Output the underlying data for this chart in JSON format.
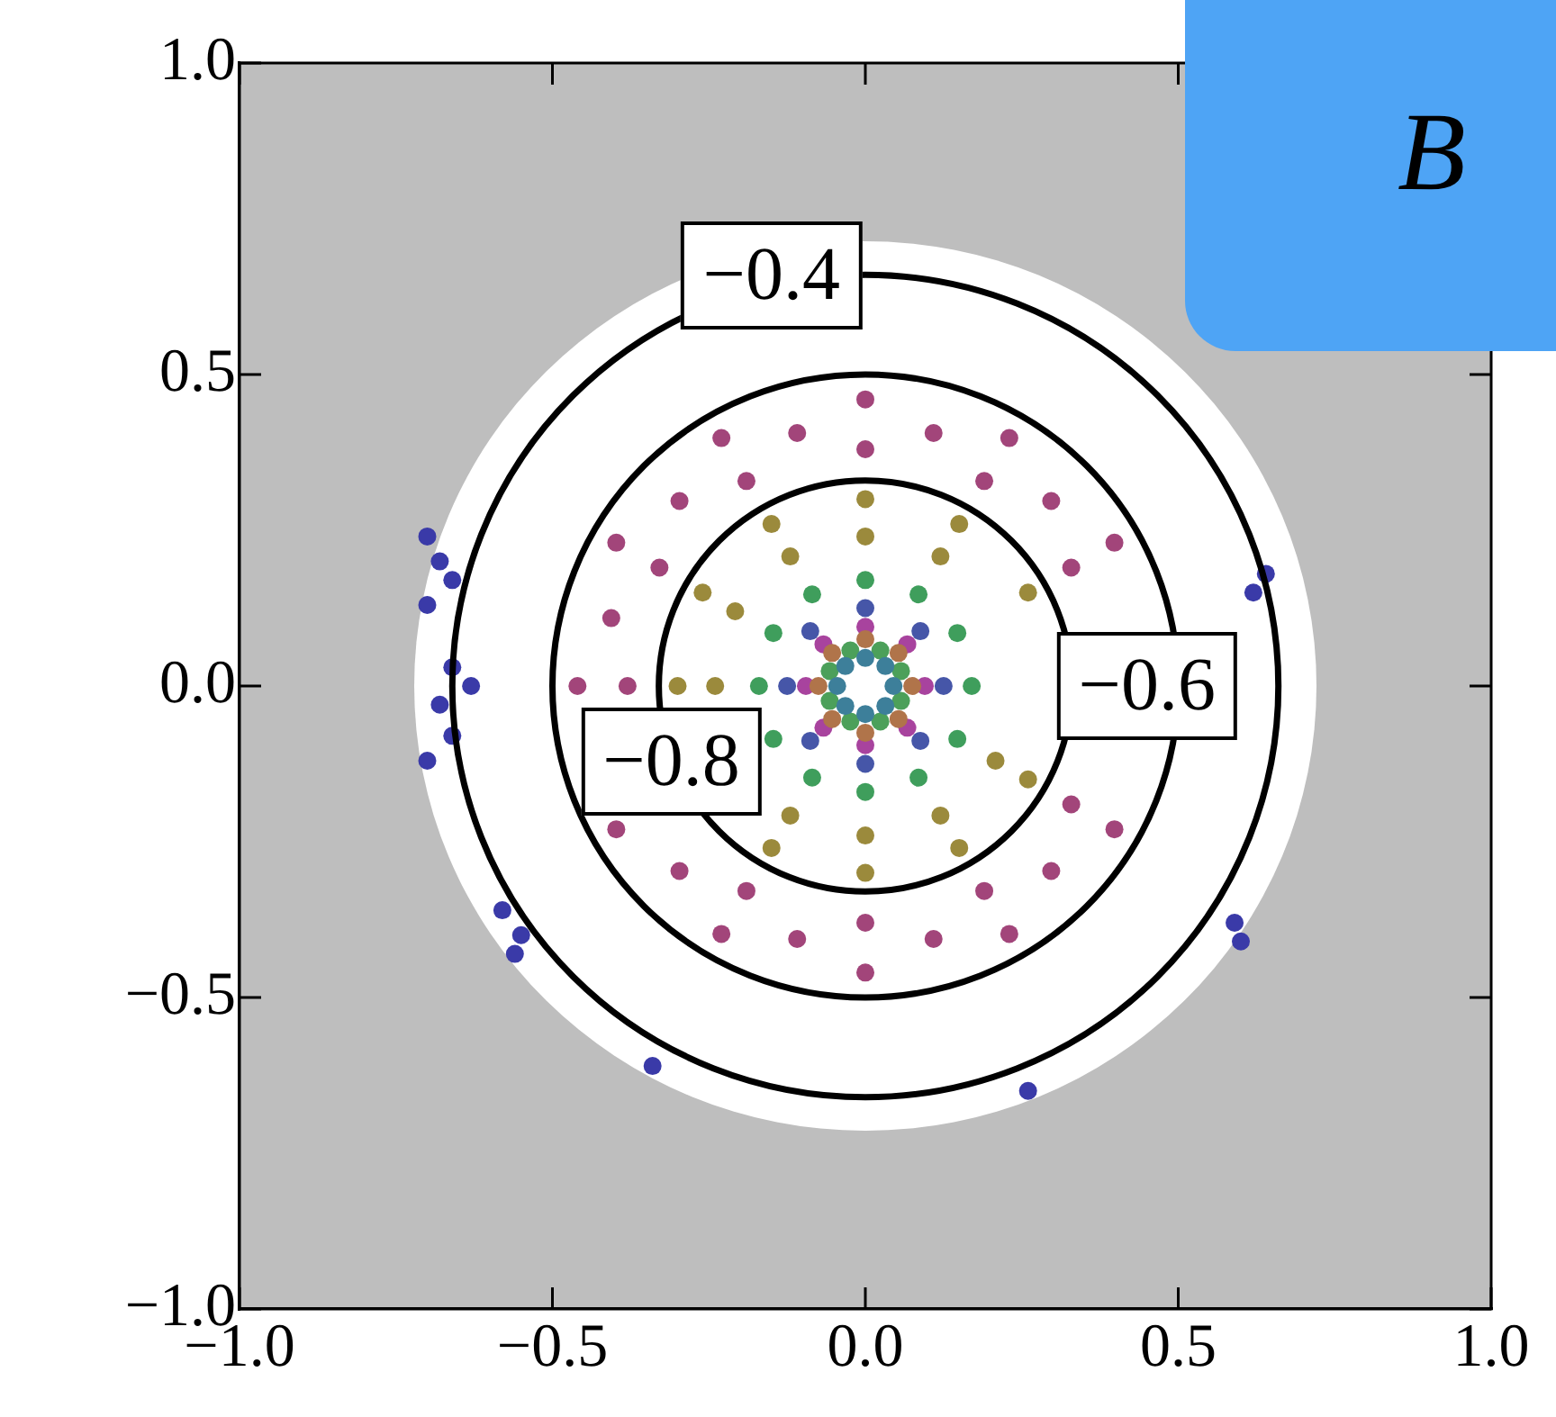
{
  "chart_data": {
    "type": "scatter",
    "xlim": [
      -1,
      1
    ],
    "ylim": [
      -1,
      1
    ],
    "xticks": [
      {
        "value": -1,
        "label": "−1.0"
      },
      {
        "value": -0.5,
        "label": "−0.5"
      },
      {
        "value": 0,
        "label": "0.0"
      },
      {
        "value": 0.5,
        "label": "0.5"
      },
      {
        "value": 1,
        "label": "1.0"
      }
    ],
    "yticks": [
      {
        "value": -1,
        "label": "−1.0"
      },
      {
        "value": -0.5,
        "label": "−0.5"
      },
      {
        "value": 0,
        "label": "0.0"
      },
      {
        "value": 0.5,
        "label": "0.5"
      },
      {
        "value": 1,
        "label": "1.0"
      }
    ],
    "legend": false,
    "series": [
      {
        "color": "#a2457a",
        "marker": "circle",
        "x": [
          0,
          0.23,
          0.398,
          0.398,
          0.23,
          0,
          -0.23,
          -0.398,
          -0.46,
          -0.398,
          -0.23,
          0,
          0.19,
          0.329,
          0.329,
          0.19,
          0,
          -0.19,
          -0.38,
          -0.329,
          -0.19,
          0.109,
          0.297,
          -0.109,
          -0.297,
          -0.406,
          -0.297,
          -0.109,
          0.109,
          0.297
        ],
        "values": [
          0.46,
          0.398,
          0.23,
          -0.23,
          -0.398,
          -0.46,
          -0.398,
          -0.23,
          0,
          0.23,
          0.398,
          0.38,
          0.329,
          0.19,
          -0.19,
          -0.329,
          -0.38,
          -0.329,
          0,
          0.19,
          0.329,
          0.406,
          0.297,
          0.406,
          0.297,
          0.109,
          -0.297,
          -0.406,
          -0.406,
          -0.297
        ]
      },
      {
        "color": "#9b8a3c",
        "marker": "circle",
        "x": [
          0,
          0.15,
          -0.15,
          -0.26,
          -0.3,
          -0.15,
          0,
          0.15,
          0.26,
          0.26,
          0.12,
          -0.12,
          -0.208,
          -0.24,
          -0.12,
          0.12,
          0.208,
          0,
          0
        ],
        "values": [
          0.3,
          0.26,
          0.26,
          0.15,
          0,
          -0.26,
          -0.3,
          -0.26,
          -0.15,
          0.15,
          0.208,
          0.208,
          0.12,
          0,
          -0.208,
          -0.208,
          -0.12,
          0.24,
          -0.24
        ]
      },
      {
        "color": "#3f9e5c",
        "marker": "circle",
        "x": [
          0.17,
          0.147,
          0.085,
          0,
          -0.085,
          -0.147,
          -0.17,
          -0.147,
          -0.085,
          0,
          0.085,
          0.147
        ],
        "values": [
          0,
          0.085,
          0.147,
          0.17,
          0.147,
          0.085,
          0,
          -0.085,
          -0.147,
          -0.17,
          -0.147,
          -0.085
        ]
      },
      {
        "color": "#4656a8",
        "marker": "circle",
        "x": [
          0.125,
          0.088,
          0,
          -0.088,
          -0.125,
          -0.088,
          0,
          0.088
        ],
        "values": [
          0,
          0.088,
          0.125,
          0.088,
          0,
          -0.088,
          -0.125,
          -0.088
        ]
      },
      {
        "color": "#a8439e",
        "marker": "circle",
        "x": [
          0.095,
          0.067,
          0,
          -0.067,
          -0.095,
          -0.067,
          0,
          0.067
        ],
        "values": [
          0,
          0.067,
          0.095,
          0.067,
          0,
          -0.067,
          -0.095,
          -0.067
        ]
      },
      {
        "color": "#b0744a",
        "marker": "circle",
        "x": [
          0.075,
          0.053,
          0,
          -0.053,
          -0.075,
          -0.053,
          0,
          0.053
        ],
        "values": [
          0,
          0.053,
          0.075,
          0.053,
          0,
          -0.053,
          -0.075,
          -0.053
        ]
      },
      {
        "color": "#4ca05a",
        "marker": "circle",
        "x": [
          0.057,
          0.024,
          -0.024,
          -0.057,
          -0.057,
          -0.024,
          0.024,
          0.057
        ],
        "values": [
          0.024,
          0.057,
          0.057,
          0.024,
          -0.024,
          -0.057,
          -0.057,
          -0.024
        ]
      },
      {
        "color": "#3d7f9a",
        "marker": "circle",
        "x": [
          0.045,
          0.032,
          0,
          -0.032,
          -0.045,
          -0.032,
          0,
          0.032
        ],
        "values": [
          0,
          0.032,
          0.045,
          0.032,
          0,
          -0.032,
          -0.045,
          -0.032
        ]
      },
      {
        "color": "#3a3aa8",
        "marker": "circle",
        "x": [
          -0.7,
          -0.68,
          -0.7,
          -0.66,
          -0.66,
          -0.63,
          -0.68,
          -0.66,
          -0.7,
          -0.58,
          -0.55,
          -0.56,
          -0.34,
          0.26,
          0.59,
          0.6,
          0.62,
          0.64
        ],
        "values": [
          0.24,
          0.2,
          0.13,
          0.17,
          0.03,
          0,
          -0.03,
          -0.08,
          -0.12,
          -0.36,
          -0.4,
          -0.43,
          -0.61,
          -0.65,
          -0.38,
          -0.41,
          0.15,
          0.18
        ]
      }
    ],
    "annotations": [
      "−0.4",
      "−0.6",
      "−0.8",
      "B"
    ]
  }
}
